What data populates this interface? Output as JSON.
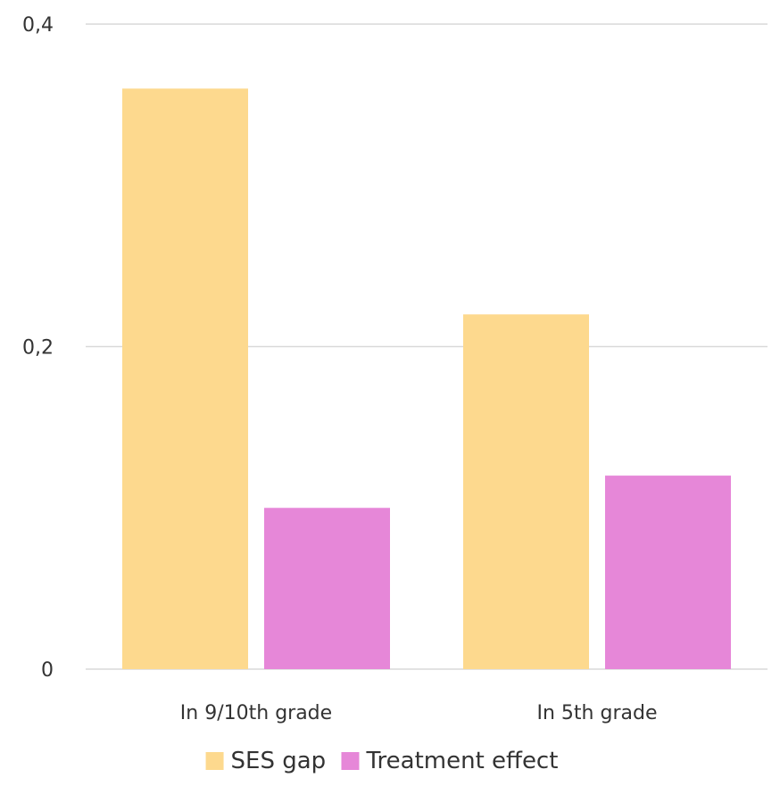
{
  "chart_data": {
    "type": "bar",
    "categories": [
      "In 9/10th grade",
      "In 5th grade"
    ],
    "series": [
      {
        "name": "SES gap",
        "values": [
          0.36,
          0.22
        ],
        "color": "#FDD98E"
      },
      {
        "name": "Treatment effect",
        "values": [
          0.1,
          0.12
        ],
        "color": "#E687D8"
      }
    ],
    "title": "",
    "xlabel": "",
    "ylabel": "",
    "ylim": [
      0,
      0.4
    ],
    "yticks": [
      {
        "value": 0,
        "label": "0"
      },
      {
        "value": 0.2,
        "label": "0,2"
      },
      {
        "value": 0.4,
        "label": "0,4"
      }
    ],
    "grid": true,
    "legend_position": "bottom-center",
    "grid_color": "#D9D9D9"
  }
}
